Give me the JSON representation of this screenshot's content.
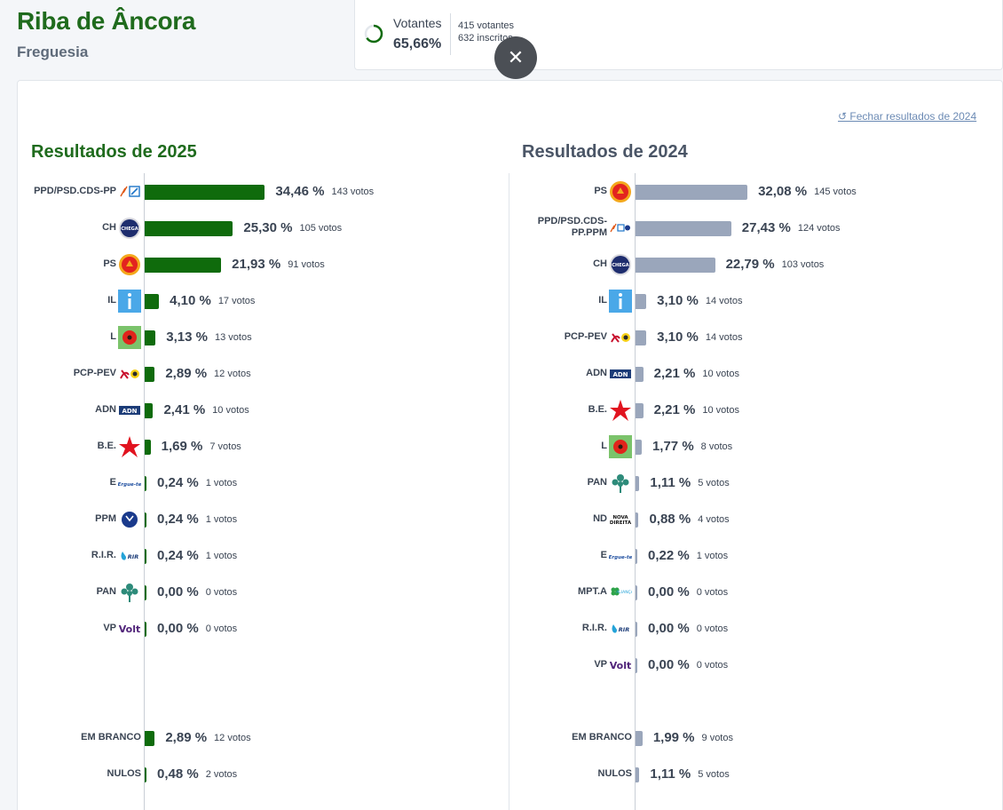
{
  "header": {
    "title": "Riba de Âncora",
    "subtitle": "Freguesia"
  },
  "turnout": {
    "label": "Votantes",
    "percent": "65,66%",
    "voters": "415 votantes",
    "registered": "632 inscritos",
    "fraction": 0.6566
  },
  "close_icon": "✕",
  "close_results_link": "↺ Fechar resultados de 2024",
  "results_2025": {
    "title": "Resultados de 2025",
    "parties": [
      {
        "label": "PPD/PSD.CDS-PP",
        "icon": "psd-cds-logo",
        "pct": "34,46 %",
        "pct_value": 34.46,
        "votes": "143 votos"
      },
      {
        "label": "CH",
        "icon": "chega-logo",
        "pct": "25,30 %",
        "pct_value": 25.3,
        "votes": "105 votos"
      },
      {
        "label": "PS",
        "icon": "ps-logo",
        "pct": "21,93 %",
        "pct_value": 21.93,
        "votes": "91 votos"
      },
      {
        "label": "IL",
        "icon": "il-logo",
        "pct": "4,10 %",
        "pct_value": 4.1,
        "votes": "17 votos"
      },
      {
        "label": "L",
        "icon": "livre-logo",
        "pct": "3,13 %",
        "pct_value": 3.13,
        "votes": "13 votos"
      },
      {
        "label": "PCP-PEV",
        "icon": "pcp-pev-logo",
        "pct": "2,89 %",
        "pct_value": 2.89,
        "votes": "12 votos"
      },
      {
        "label": "ADN",
        "icon": "adn-logo",
        "pct": "2,41 %",
        "pct_value": 2.41,
        "votes": "10 votos"
      },
      {
        "label": "B.E.",
        "icon": "be-logo",
        "pct": "1,69 %",
        "pct_value": 1.69,
        "votes": "7 votos"
      },
      {
        "label": "E",
        "icon": "ergue-te-logo",
        "pct": "0,24 %",
        "pct_value": 0.24,
        "votes": "1 votos"
      },
      {
        "label": "PPM",
        "icon": "ppm-logo",
        "pct": "0,24 %",
        "pct_value": 0.24,
        "votes": "1 votos"
      },
      {
        "label": "R.I.R.",
        "icon": "rir-logo",
        "pct": "0,24 %",
        "pct_value": 0.24,
        "votes": "1 votos"
      },
      {
        "label": "PAN",
        "icon": "pan-logo",
        "pct": "0,00 %",
        "pct_value": 0,
        "votes": "0 votos"
      },
      {
        "label": "VP",
        "icon": "volt-logo",
        "pct": "0,00 %",
        "pct_value": 0,
        "votes": "0 votos"
      }
    ],
    "extras": [
      {
        "label": "EM BRANCO",
        "pct": "2,89 %",
        "pct_value": 2.89,
        "votes": "12 votos"
      },
      {
        "label": "NULOS",
        "pct": "0,48 %",
        "pct_value": 0.48,
        "votes": "2 votos"
      }
    ]
  },
  "results_2024": {
    "title": "Resultados de 2024",
    "parties": [
      {
        "label": "PS",
        "icon": "ps-logo",
        "pct": "32,08 %",
        "pct_value": 32.08,
        "votes": "145 votos"
      },
      {
        "label": "PPD/PSD.CDS-PP.PPM",
        "icon": "psd-cds-ppm-logo",
        "pct": "27,43 %",
        "pct_value": 27.43,
        "votes": "124 votos"
      },
      {
        "label": "CH",
        "icon": "chega-logo",
        "pct": "22,79 %",
        "pct_value": 22.79,
        "votes": "103 votos"
      },
      {
        "label": "IL",
        "icon": "il-logo",
        "pct": "3,10 %",
        "pct_value": 3.1,
        "votes": "14 votos"
      },
      {
        "label": "PCP-PEV",
        "icon": "pcp-pev-logo",
        "pct": "3,10 %",
        "pct_value": 3.1,
        "votes": "14 votos"
      },
      {
        "label": "ADN",
        "icon": "adn-logo",
        "pct": "2,21 %",
        "pct_value": 2.21,
        "votes": "10 votos"
      },
      {
        "label": "B.E.",
        "icon": "be-logo",
        "pct": "2,21 %",
        "pct_value": 2.21,
        "votes": "10 votos"
      },
      {
        "label": "L",
        "icon": "livre-logo",
        "pct": "1,77 %",
        "pct_value": 1.77,
        "votes": "8 votos"
      },
      {
        "label": "PAN",
        "icon": "pan-logo",
        "pct": "1,11 %",
        "pct_value": 1.11,
        "votes": "5 votos"
      },
      {
        "label": "ND",
        "icon": "nova-direita-logo",
        "pct": "0,88 %",
        "pct_value": 0.88,
        "votes": "4 votos"
      },
      {
        "label": "E",
        "icon": "ergue-te-logo",
        "pct": "0,22 %",
        "pct_value": 0.22,
        "votes": "1 votos"
      },
      {
        "label": "MPT.A",
        "icon": "mpt-alianca-logo",
        "pct": "0,00 %",
        "pct_value": 0,
        "votes": "0 votos"
      },
      {
        "label": "R.I.R.",
        "icon": "rir-logo",
        "pct": "0,00 %",
        "pct_value": 0,
        "votes": "0 votos"
      },
      {
        "label": "VP",
        "icon": "volt-logo",
        "pct": "0,00 %",
        "pct_value": 0,
        "votes": "0 votos"
      }
    ],
    "extras": [
      {
        "label": "EM BRANCO",
        "pct": "1,99 %",
        "pct_value": 1.99,
        "votes": "9 votos"
      },
      {
        "label": "NULOS",
        "pct": "1,11 %",
        "pct_value": 1.11,
        "votes": "5 votos"
      }
    ]
  },
  "logo_text": {
    "chega": "CHEGA",
    "adn": "ADN",
    "ergue_te": "Ergue-te",
    "rir": "RIR",
    "volt": "Volt",
    "nova_direita": "NOVA DIREITA",
    "mpt": "ALIANÇA"
  },
  "colors": {
    "bar_2025": "#0f6b0c",
    "bar_2024": "#9aa6bb",
    "title_2025": "#1f6b1d"
  }
}
